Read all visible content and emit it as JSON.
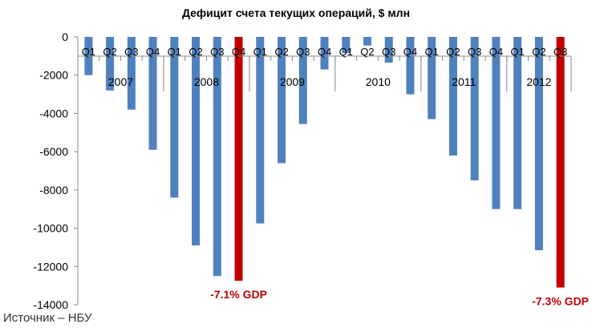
{
  "chart_data": {
    "type": "bar",
    "title": "Дефицит счета текущих операций, $ млн",
    "xlabel": "",
    "ylabel": "",
    "ylim": [
      -14000,
      0
    ],
    "yticks": [
      0,
      -2000,
      -4000,
      -6000,
      -8000,
      -10000,
      -12000,
      -14000
    ],
    "grid": false,
    "legend": "none",
    "bar_color": "#4f81bd",
    "highlight_color": "#c00000",
    "categories": [
      "Q1",
      "Q2",
      "Q3",
      "Q4",
      "Q1",
      "Q2",
      "Q3",
      "Q4",
      "Q1",
      "Q2",
      "Q3",
      "Q4",
      "Q1",
      "Q2",
      "Q3",
      "Q4",
      "Q1",
      "Q2",
      "Q3",
      "Q4",
      "Q1",
      "Q2",
      "Q3"
    ],
    "years": [
      {
        "label": "2007",
        "count": 4
      },
      {
        "label": "2008",
        "count": 4
      },
      {
        "label": "2009",
        "count": 4
      },
      {
        "label": "2010",
        "count": 4
      },
      {
        "label": "2011",
        "count": 4
      },
      {
        "label": "2012",
        "count": 3
      }
    ],
    "values": [
      -2000,
      -2800,
      -3800,
      -5900,
      -8400,
      -10900,
      -12500,
      -12750,
      -9750,
      -6600,
      -4550,
      -1700,
      -850,
      -450,
      -1350,
      -3000,
      -4300,
      -6200,
      -7500,
      -9000,
      -9000,
      -11150,
      -13100
    ],
    "highlight_indices": [
      7,
      22
    ],
    "annotations": [
      {
        "text": "-7.1% GDP",
        "index": 7
      },
      {
        "text": "-7.3% GDP",
        "index": 22
      }
    ]
  },
  "source": "Источник – НБУ"
}
